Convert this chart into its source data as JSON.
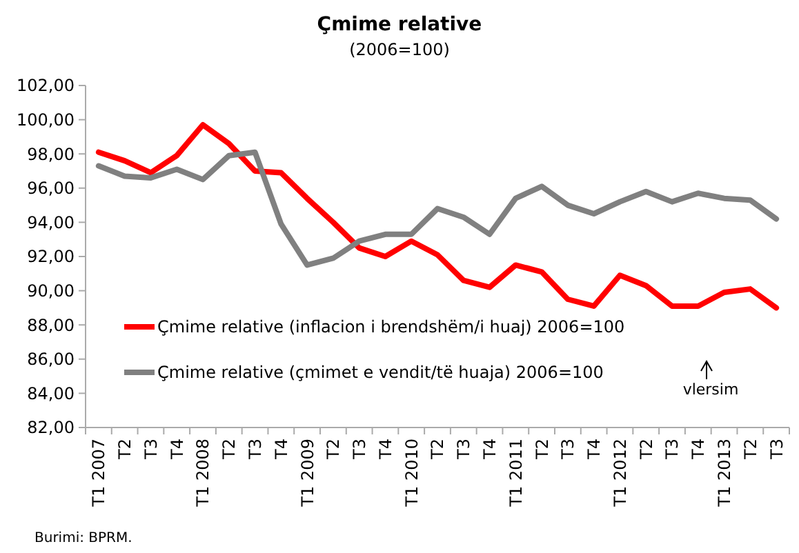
{
  "chart_data": {
    "type": "line",
    "title": "Çmime relative",
    "subtitle": "(2006=100)",
    "categories": [
      "T1 2007",
      "T2",
      "T3",
      "T4",
      "T1 2008",
      "T2",
      "T3",
      "T4",
      "T1 2009",
      "T2",
      "T3",
      "T4",
      "T1 2010",
      "T2",
      "T3",
      "T4",
      "T1 2011",
      "T2",
      "T3",
      "T4",
      "T1 2012",
      "T2",
      "T3",
      "T4",
      "T1 2013",
      "T2",
      "T3"
    ],
    "series": [
      {
        "name": "Çmime relative (inflacion i brendshëm/i huaj) 2006=100",
        "color": "#ff0000",
        "values": [
          98.1,
          97.6,
          96.9,
          97.9,
          99.7,
          98.6,
          97.0,
          96.9,
          95.4,
          94.0,
          92.5,
          92.0,
          92.9,
          92.1,
          90.6,
          90.2,
          91.5,
          91.1,
          89.5,
          89.1,
          90.9,
          90.3,
          89.1,
          89.1,
          89.9,
          90.1,
          89.0
        ]
      },
      {
        "name": "Çmime relative (çmimet e vendit/të huaja) 2006=100",
        "color": "#808080",
        "values": [
          97.3,
          96.7,
          96.6,
          97.1,
          96.5,
          97.9,
          98.1,
          93.9,
          91.5,
          91.9,
          92.9,
          93.3,
          93.3,
          94.8,
          94.3,
          93.3,
          95.4,
          96.1,
          95.0,
          94.5,
          95.2,
          95.8,
          95.2,
          95.7,
          95.4,
          95.3,
          94.2
        ]
      }
    ],
    "ylim": [
      82,
      102
    ],
    "yticks": [
      {
        "value": 82,
        "label": "82,00"
      },
      {
        "value": 84,
        "label": "84,00"
      },
      {
        "value": 86,
        "label": "86,00"
      },
      {
        "value": 88,
        "label": "88,00"
      },
      {
        "value": 90,
        "label": "90,00"
      },
      {
        "value": 92,
        "label": "92,00"
      },
      {
        "value": 94,
        "label": "94,00"
      },
      {
        "value": 96,
        "label": "96,00"
      },
      {
        "value": 98,
        "label": "98,00"
      },
      {
        "value": 100,
        "label": "100,00"
      },
      {
        "value": 102,
        "label": "102,00"
      }
    ],
    "grid": false,
    "legend": "bottom left",
    "marker": "none",
    "line_style": "solid",
    "annotations": [
      "vlersim",
      "Burimi: BPRM."
    ]
  }
}
